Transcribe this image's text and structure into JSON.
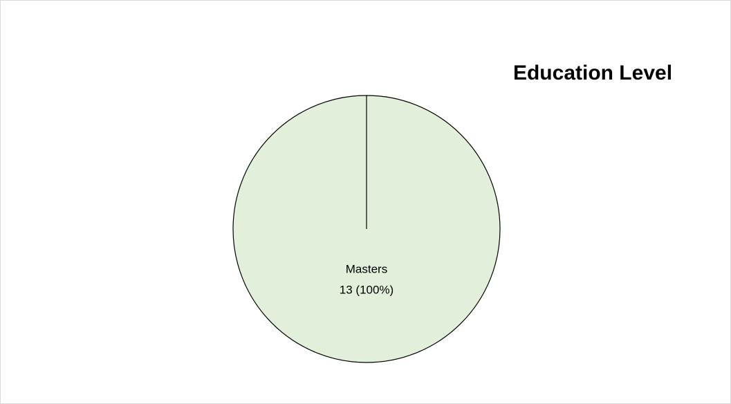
{
  "chart_data": {
    "type": "pie",
    "title": "Education Level",
    "categories": [
      "Masters"
    ],
    "values": [
      13
    ],
    "value_labels": [
      "13 (100%)"
    ],
    "colors": [
      "#e2efda"
    ]
  }
}
